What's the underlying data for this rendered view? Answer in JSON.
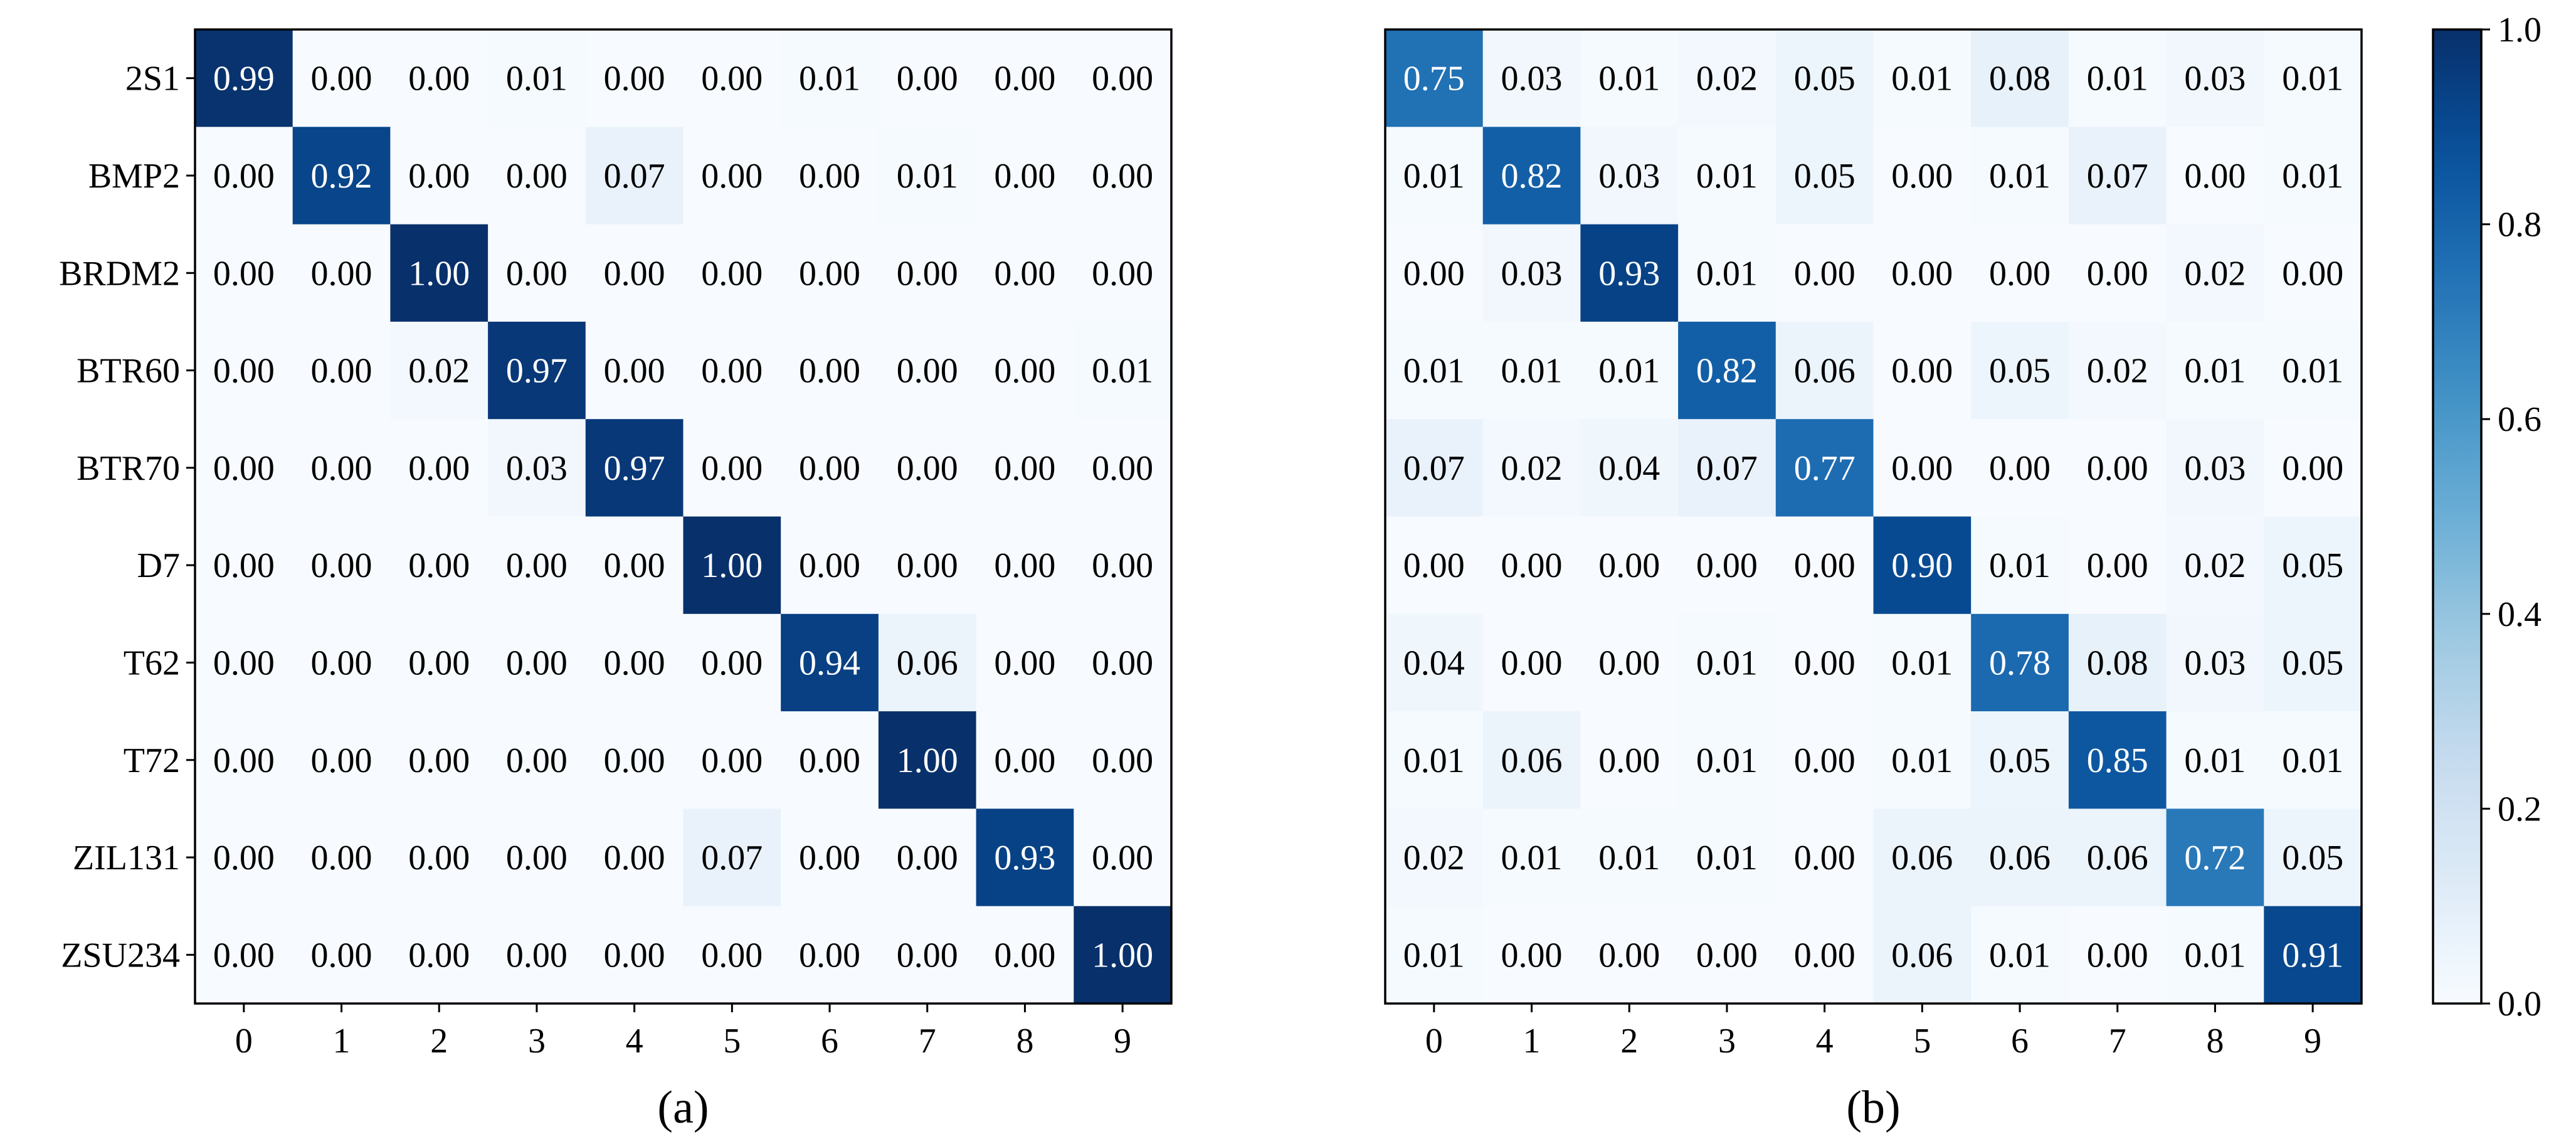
{
  "chart_data": [
    {
      "type": "heatmap",
      "caption": "(a)",
      "x_tick_labels": [
        "0",
        "1",
        "2",
        "3",
        "4",
        "5",
        "6",
        "7",
        "8",
        "9"
      ],
      "y_tick_labels": [
        "2S1",
        "BMP2",
        "BRDM2",
        "BTR60",
        "BTR70",
        "D7",
        "T62",
        "T72",
        "ZIL131",
        "ZSU234"
      ],
      "values": [
        [
          0.99,
          0.0,
          0.0,
          0.01,
          0.0,
          0.0,
          0.01,
          0.0,
          0.0,
          0.0
        ],
        [
          0.0,
          0.92,
          0.0,
          0.0,
          0.07,
          0.0,
          0.0,
          0.01,
          0.0,
          0.0
        ],
        [
          0.0,
          0.0,
          1.0,
          0.0,
          0.0,
          0.0,
          0.0,
          0.0,
          0.0,
          0.0
        ],
        [
          0.0,
          0.0,
          0.02,
          0.97,
          0.0,
          0.0,
          0.0,
          0.0,
          0.0,
          0.01
        ],
        [
          0.0,
          0.0,
          0.0,
          0.03,
          0.97,
          0.0,
          0.0,
          0.0,
          0.0,
          0.0
        ],
        [
          0.0,
          0.0,
          0.0,
          0.0,
          0.0,
          1.0,
          0.0,
          0.0,
          0.0,
          0.0
        ],
        [
          0.0,
          0.0,
          0.0,
          0.0,
          0.0,
          0.0,
          0.94,
          0.06,
          0.0,
          0.0
        ],
        [
          0.0,
          0.0,
          0.0,
          0.0,
          0.0,
          0.0,
          0.0,
          1.0,
          0.0,
          0.0
        ],
        [
          0.0,
          0.0,
          0.0,
          0.0,
          0.0,
          0.07,
          0.0,
          0.0,
          0.93,
          0.0
        ],
        [
          0.0,
          0.0,
          0.0,
          0.0,
          0.0,
          0.0,
          0.0,
          0.0,
          0.0,
          1.0
        ]
      ]
    },
    {
      "type": "heatmap",
      "caption": "(b)",
      "x_tick_labels": [
        "0",
        "1",
        "2",
        "3",
        "4",
        "5",
        "6",
        "7",
        "8",
        "9"
      ],
      "y_tick_labels": [],
      "values": [
        [
          0.75,
          0.03,
          0.01,
          0.02,
          0.05,
          0.01,
          0.08,
          0.01,
          0.03,
          0.01
        ],
        [
          0.01,
          0.82,
          0.03,
          0.01,
          0.05,
          0.0,
          0.01,
          0.07,
          0.0,
          0.01
        ],
        [
          0.0,
          0.03,
          0.93,
          0.01,
          0.0,
          0.0,
          0.0,
          0.0,
          0.02,
          0.0
        ],
        [
          0.01,
          0.01,
          0.01,
          0.82,
          0.06,
          0.0,
          0.05,
          0.02,
          0.01,
          0.01
        ],
        [
          0.07,
          0.02,
          0.04,
          0.07,
          0.77,
          0.0,
          0.0,
          0.0,
          0.03,
          0.0
        ],
        [
          0.0,
          0.0,
          0.0,
          0.0,
          0.0,
          0.9,
          0.01,
          0.0,
          0.02,
          0.05
        ],
        [
          0.04,
          0.0,
          0.0,
          0.01,
          0.0,
          0.01,
          0.78,
          0.08,
          0.03,
          0.05
        ],
        [
          0.01,
          0.06,
          0.0,
          0.01,
          0.0,
          0.01,
          0.05,
          0.85,
          0.01,
          0.01
        ],
        [
          0.02,
          0.01,
          0.01,
          0.01,
          0.0,
          0.06,
          0.06,
          0.06,
          0.72,
          0.05
        ],
        [
          0.01,
          0.0,
          0.0,
          0.0,
          0.0,
          0.06,
          0.01,
          0.0,
          0.01,
          0.91
        ]
      ]
    }
  ],
  "colorbar": {
    "range": [
      0.0,
      1.0
    ],
    "tick_values": [
      0.0,
      0.2,
      0.4,
      0.6,
      0.8,
      1.0
    ],
    "tick_labels": [
      "0.0",
      "0.2",
      "0.4",
      "0.6",
      "0.8",
      "1.0"
    ],
    "colormap": "Blues",
    "color_low": "#f7fbff",
    "color_high": "#08306b"
  }
}
